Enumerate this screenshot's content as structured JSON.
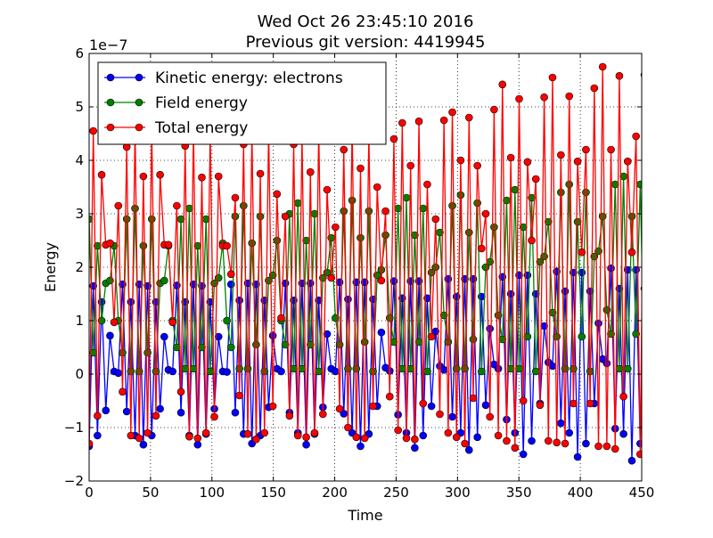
{
  "chart_data": {
    "type": "line",
    "title_line1": "Wed Oct 26 23:45:10 2016",
    "title_line2": "Previous git version: 4419945",
    "xlabel": "Time",
    "ylabel": "Energy",
    "y_offset_label": "1e−7",
    "xlim": [
      0,
      450
    ],
    "ylim": [
      -2,
      6
    ],
    "x_ticks": [
      0,
      50,
      100,
      150,
      200,
      250,
      300,
      350,
      400,
      450
    ],
    "y_ticks": [
      -2,
      -1,
      0,
      1,
      2,
      3,
      4,
      5,
      6
    ],
    "x_tick_labels": [
      "0",
      "50",
      "100",
      "150",
      "200",
      "250",
      "300",
      "350",
      "400",
      "450"
    ],
    "y_tick_labels": [
      "−2",
      "−1",
      "0",
      "1",
      "2",
      "3",
      "4",
      "5",
      "6"
    ],
    "grid": true,
    "legend_position": "top-left",
    "x_step": 3.4,
    "n_points": 133,
    "series": [
      {
        "name": "Kinetic energy: electrons",
        "color": "#0000ff",
        "values": [
          -1.35,
          1.65,
          -1.15,
          1.35,
          -0.68,
          0.72,
          0.05,
          0.02,
          1.68,
          -0.7,
          1.35,
          -1.15,
          1.68,
          -1.32,
          1.65,
          -1.15,
          1.35,
          -0.65,
          0.7,
          0.08,
          0.05,
          1.66,
          -0.72,
          1.35,
          -1.15,
          1.68,
          -1.32,
          1.65,
          -1.12,
          1.35,
          -0.65,
          0.7,
          0.05,
          0.04,
          1.68,
          -0.72,
          1.38,
          -1.12,
          1.7,
          -1.3,
          1.68,
          -1.15,
          1.38,
          -0.62,
          0.72,
          0.1,
          0.05,
          1.7,
          -0.72,
          1.38,
          -1.1,
          1.7,
          -1.32,
          1.7,
          -1.12,
          1.38,
          -0.62,
          0.75,
          0.1,
          0.05,
          1.72,
          -0.74,
          1.4,
          -1.1,
          1.72,
          -1.35,
          1.72,
          -1.12,
          1.4,
          -0.6,
          0.78,
          0.12,
          0.06,
          1.74,
          -0.76,
          1.42,
          -1.1,
          1.74,
          -1.38,
          1.74,
          -1.15,
          1.42,
          -0.6,
          0.8,
          0.15,
          0.08,
          1.78,
          -0.8,
          1.45,
          -1.1,
          1.78,
          -1.42,
          1.78,
          -1.18,
          1.45,
          -0.58,
          0.85,
          0.18,
          0.1,
          1.82,
          -0.85,
          1.5,
          -1.1,
          1.85,
          -1.5,
          1.85,
          -1.25,
          1.5,
          -0.55,
          0.9,
          0.22,
          0.15,
          1.92,
          -0.92,
          1.55,
          -1.1,
          1.9,
          -1.55,
          1.9,
          -1.3,
          1.55,
          -0.55,
          0.95,
          0.28,
          0.2,
          1.98,
          -1.02,
          1.6,
          -1.12,
          1.95,
          -1.62,
          1.95,
          -1.3,
          1.6,
          -0.52,
          0.55,
          0.42
        ]
      },
      {
        "name": "Field energy",
        "color": "#008000",
        "values": [
          2.9,
          0.4,
          2.4,
          1.0,
          1.7,
          1.75,
          2.4,
          1.0,
          0.4,
          2.9,
          0.05,
          3.1,
          0.05,
          2.4,
          0.4,
          2.9,
          0.05,
          1.7,
          1.75,
          2.4,
          1.0,
          0.5,
          2.9,
          0.1,
          3.1,
          0.1,
          2.4,
          0.5,
          2.9,
          0.05,
          1.7,
          1.8,
          2.45,
          1.0,
          0.5,
          2.95,
          0.1,
          3.15,
          0.1,
          2.45,
          0.55,
          2.95,
          0.05,
          1.75,
          1.85,
          2.5,
          1.0,
          0.55,
          3.0,
          0.1,
          3.2,
          0.1,
          2.5,
          0.55,
          3.0,
          0.05,
          1.8,
          1.9,
          2.55,
          1.05,
          0.55,
          3.05,
          0.1,
          3.25,
          0.1,
          2.55,
          0.6,
          3.05,
          0.05,
          1.85,
          1.95,
          2.6,
          1.05,
          0.6,
          3.1,
          0.1,
          3.3,
          0.1,
          2.6,
          0.6,
          3.1,
          0.05,
          1.9,
          2.0,
          2.65,
          1.1,
          0.6,
          3.15,
          0.1,
          3.35,
          0.1,
          2.65,
          0.65,
          3.2,
          0.05,
          2.0,
          2.1,
          2.75,
          1.1,
          0.65,
          3.25,
          0.1,
          3.45,
          0.1,
          2.75,
          0.7,
          3.3,
          0.05,
          2.1,
          2.2,
          2.85,
          1.15,
          0.7,
          3.4,
          0.1,
          3.55,
          0.1,
          2.85,
          0.7,
          3.4,
          0.05,
          2.2,
          2.3,
          2.95,
          1.2,
          0.75,
          3.55,
          0.1,
          3.7,
          0.1,
          2.95,
          0.75,
          3.55,
          0.05,
          1.7,
          2.62
        ]
      },
      {
        "name": "Total energy",
        "color": "#ff0000",
        "values": [
          -1.3,
          4.55,
          -0.78,
          3.73,
          2.42,
          2.45,
          0.97,
          3.15,
          -0.33,
          4.25,
          -1.15,
          4.6,
          -1.2,
          3.7,
          -1.1,
          4.55,
          -0.78,
          3.73,
          2.42,
          2.42,
          0.97,
          3.15,
          -0.33,
          4.27,
          -1.17,
          4.6,
          -1.2,
          3.68,
          -1.1,
          4.55,
          -0.8,
          3.7,
          2.4,
          2.4,
          1.87,
          3.3,
          -0.4,
          4.3,
          -1.12,
          4.55,
          -1.22,
          3.75,
          -1.1,
          4.58,
          -0.6,
          3.37,
          1.05,
          2.95,
          -0.78,
          4.3,
          -1.15,
          4.45,
          -1.18,
          3.78,
          -1.1,
          4.6,
          -0.75,
          3.45,
          1.8,
          2.75,
          -0.65,
          4.2,
          -1.0,
          4.65,
          -1.18,
          3.85,
          -1.2,
          4.5,
          -0.6,
          3.5,
          1.75,
          3.05,
          -0.42,
          4.4,
          -1.05,
          4.7,
          -1.2,
          3.9,
          -1.22,
          4.73,
          -0.55,
          3.55,
          0.7,
          2.9,
          -0.75,
          4.75,
          -1.1,
          4.9,
          -1.18,
          4.0,
          -1.3,
          4.8,
          -0.45,
          3.9,
          2.35,
          3.0,
          -0.8,
          4.95,
          -1.15,
          5.42,
          -1.25,
          4.05,
          -1.38,
          5.15,
          -0.5,
          3.97,
          2.5,
          3.65,
          -0.58,
          5.18,
          -1.25,
          5.55,
          -1.28,
          4.1,
          -1.3,
          5.2,
          -0.55,
          3.98,
          2.28,
          4.2,
          -0.55,
          5.35,
          -1.35,
          5.75,
          -1.35,
          4.2,
          -1.4,
          5.58,
          -0.42,
          3.98,
          2.28,
          4.45,
          -1.5,
          5.6,
          -1.52,
          5.92,
          -1.38,
          4.7,
          -0.5,
          2.32,
          3.05
        ]
      }
    ]
  }
}
